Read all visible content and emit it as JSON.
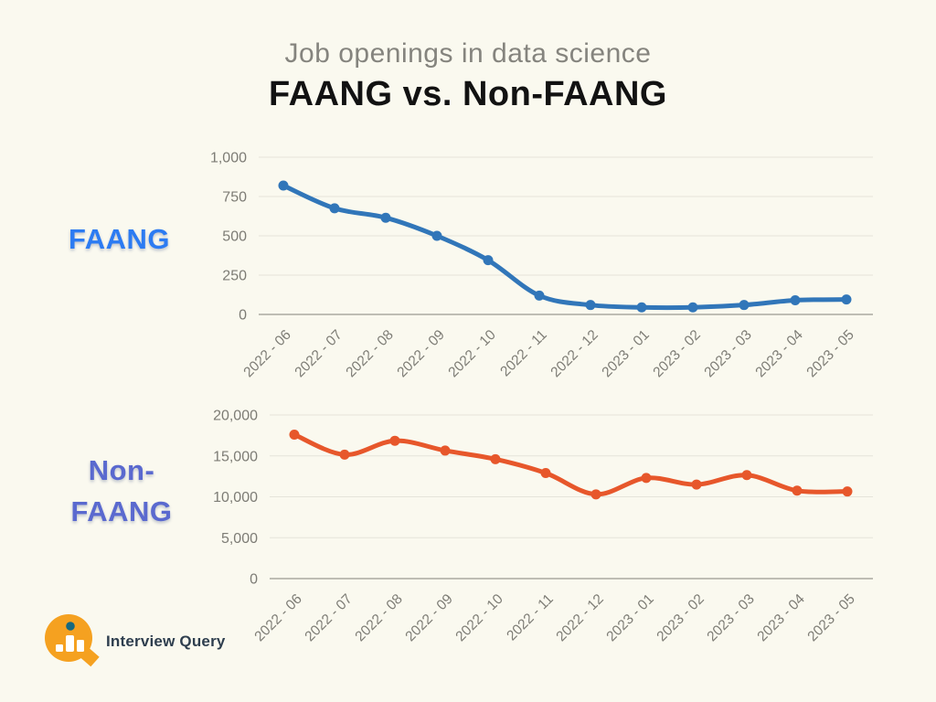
{
  "page": {
    "background_color": "#FAF9EF"
  },
  "header": {
    "subtitle": "Job openings in data science",
    "subtitle_color": "#85847E",
    "title": "FAANG vs. Non-FAANG",
    "title_color": "#121212"
  },
  "side_labels": {
    "faang": "FAANG",
    "faang_color": "#2C7BF2",
    "non_faang_line1": "Non-",
    "non_faang_line2": "FAANG",
    "non_faang_color": "#5A69CF"
  },
  "logo": {
    "text": "Interview Query",
    "text_color": "#2E3E4E",
    "circle_color": "#F5A120",
    "bars_color": "#FFFFFF",
    "dot_color": "#16697F"
  },
  "chart_data": [
    {
      "name": "FAANG job openings",
      "type": "line",
      "curve": "smooth",
      "legend": "none",
      "grid": "horizontal-only",
      "categories": [
        "2022 - 06",
        "2022 - 07",
        "2022 - 08",
        "2022 - 09",
        "2022 - 10",
        "2022 - 11",
        "2022 - 12",
        "2023 - 01",
        "2023 - 02",
        "2023 - 03",
        "2023 - 04",
        "2023 - 05"
      ],
      "values": [
        820,
        675,
        615,
        500,
        345,
        120,
        60,
        45,
        45,
        60,
        90,
        95
      ],
      "ylim": [
        0,
        1000
      ],
      "ytick_values": [
        0,
        250,
        500,
        750,
        1000
      ],
      "ytick_labels": [
        "0",
        "250",
        "500",
        "750",
        "1,000"
      ],
      "line_color": "#3176B9",
      "grid_color": "#E5E4DA",
      "axis_color": "#B5B4AB",
      "tick_label_color": "#7D7C75"
    },
    {
      "name": "Non-FAANG job openings",
      "type": "line",
      "curve": "smooth",
      "legend": "none",
      "grid": "horizontal-only",
      "categories": [
        "2022 - 06",
        "2022 - 07",
        "2022 - 08",
        "2022 - 09",
        "2022 - 10",
        "2022 - 11",
        "2022 - 12",
        "2023 - 01",
        "2023 - 02",
        "2023 - 03",
        "2023 - 04",
        "2023 - 05"
      ],
      "values": [
        17600,
        15150,
        16850,
        15650,
        14600,
        12900,
        10300,
        12300,
        11500,
        12650,
        10750,
        10650
      ],
      "ylim": [
        0,
        20000
      ],
      "ytick_values": [
        0,
        5000,
        10000,
        15000,
        20000
      ],
      "ytick_labels": [
        "0",
        "5,000",
        "10,000",
        "15,000",
        "20,000"
      ],
      "line_color": "#E7572B",
      "grid_color": "#E5E4DA",
      "axis_color": "#B5B4AB",
      "tick_label_color": "#7D7C75"
    }
  ]
}
